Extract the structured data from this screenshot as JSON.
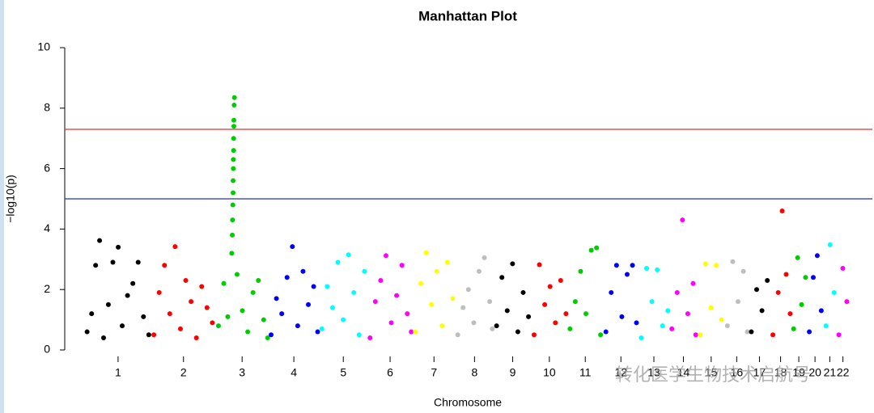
{
  "chart_data": {
    "type": "manhattan",
    "title": "Manhattan Plot",
    "xlabel": "Chromosome",
    "ylabel": "−log10(p)",
    "watermark": "转化医学生物技术启航号",
    "ylim": [
      0,
      10
    ],
    "yticks": [
      0,
      2,
      4,
      6,
      8,
      10
    ],
    "thresholds": [
      {
        "value": 7.3,
        "color": "#e03030"
      },
      {
        "value": 5,
        "color": "#2030c0"
      }
    ],
    "categories": [
      "1",
      "2",
      "3",
      "4",
      "5",
      "6",
      "7",
      "8",
      "9",
      "10",
      "11",
      "12",
      "13",
      "14",
      "15",
      "16",
      "17",
      "18",
      "19",
      "20",
      "21",
      "22"
    ],
    "series": [
      {
        "color": "#000000",
        "x": [
          8,
          25,
          40,
          55,
          70,
          88,
          105,
          125,
          140,
          160,
          180,
          200,
          220,
          240
        ],
        "values": [
          0.6,
          1.2,
          2.8,
          3.62,
          0.4,
          1.5,
          2.9,
          3.4,
          0.8,
          1.8,
          2.2,
          2.9,
          1.1,
          0.5
        ]
      },
      {
        "color": "#ff0000",
        "x": [
          10,
          30,
          50,
          70,
          90,
          110,
          130,
          150,
          170,
          190,
          210,
          230
        ],
        "values": [
          0.5,
          1.9,
          2.8,
          1.2,
          3.42,
          0.7,
          2.3,
          1.6,
          0.4,
          2.1,
          1.4,
          0.9
        ]
      },
      {
        "color": "#00cd00",
        "x": [
          10,
          30,
          45,
          60,
          62,
          63,
          64,
          65,
          65,
          66,
          66,
          67,
          67,
          68,
          68,
          69,
          70,
          80,
          100,
          120,
          140,
          160,
          180,
          195
        ],
        "values": [
          0.8,
          2.2,
          1.1,
          3.2,
          3.8,
          4.3,
          4.8,
          5.2,
          5.6,
          6.0,
          6.3,
          6.6,
          7.0,
          7.4,
          7.6,
          8.1,
          8.35,
          2.5,
          1.3,
          0.6,
          1.9,
          2.3,
          1.0,
          0.4
        ]
      },
      {
        "color": "#0000ff",
        "x": [
          10,
          30,
          50,
          70,
          90,
          110,
          130,
          150,
          170,
          185
        ],
        "values": [
          0.5,
          1.7,
          1.2,
          2.4,
          3.42,
          0.8,
          2.6,
          1.5,
          2.1,
          0.6
        ]
      },
      {
        "color": "#00ffff",
        "x": [
          10,
          30,
          50,
          70,
          90,
          110,
          130,
          150,
          170
        ],
        "values": [
          0.7,
          2.1,
          1.4,
          2.9,
          1.0,
          3.15,
          1.9,
          0.5,
          2.6
        ]
      },
      {
        "color": "#ff00ff",
        "x": [
          10,
          30,
          50,
          70,
          90,
          110,
          130,
          150,
          165
        ],
        "values": [
          0.4,
          1.6,
          2.3,
          3.12,
          0.9,
          1.8,
          2.8,
          1.2,
          0.6
        ]
      },
      {
        "color": "#ffff00",
        "x": [
          10,
          30,
          50,
          70,
          90,
          110,
          130,
          150
        ],
        "values": [
          0.6,
          2.2,
          3.22,
          1.5,
          2.6,
          0.8,
          2.9,
          1.7
        ]
      },
      {
        "color": "#bebebe",
        "x": [
          10,
          30,
          50,
          70,
          90,
          110,
          130,
          140
        ],
        "values": [
          0.5,
          1.4,
          2.0,
          0.9,
          2.6,
          3.05,
          1.6,
          0.7
        ]
      },
      {
        "color": "#000000",
        "x": [
          10,
          30,
          50,
          70,
          90,
          110,
          130
        ],
        "values": [
          0.8,
          2.4,
          1.3,
          2.85,
          0.6,
          1.9,
          1.1
        ]
      },
      {
        "color": "#ff0000",
        "x": [
          10,
          30,
          50,
          70,
          90,
          110,
          130
        ],
        "values": [
          0.5,
          2.82,
          1.5,
          2.1,
          0.9,
          2.3,
          1.2
        ]
      },
      {
        "color": "#00cd00",
        "x": [
          10,
          30,
          50,
          70,
          90,
          110,
          125
        ],
        "values": [
          0.7,
          1.6,
          2.6,
          1.2,
          3.3,
          3.38,
          0.5
        ]
      },
      {
        "color": "#0000ff",
        "x": [
          10,
          30,
          50,
          70,
          90,
          110,
          125
        ],
        "values": [
          0.6,
          1.9,
          2.8,
          1.1,
          2.5,
          2.8,
          0.9
        ]
      },
      {
        "color": "#00ffff",
        "x": [
          10,
          30,
          50,
          70,
          90,
          110
        ],
        "values": [
          0.4,
          2.7,
          1.6,
          2.65,
          0.8,
          1.3
        ]
      },
      {
        "color": "#ff00ff",
        "x": [
          10,
          30,
          50,
          70,
          90,
          100
        ],
        "values": [
          0.7,
          1.9,
          4.3,
          1.2,
          2.2,
          0.5
        ]
      },
      {
        "color": "#ffff00",
        "x": [
          10,
          30,
          50,
          70,
          90
        ],
        "values": [
          0.5,
          2.85,
          1.4,
          2.8,
          1.0
        ]
      },
      {
        "color": "#bebebe",
        "x": [
          10,
          30,
          50,
          70,
          85
        ],
        "values": [
          0.8,
          2.92,
          1.6,
          2.6,
          0.6
        ]
      },
      {
        "color": "#000000",
        "x": [
          10,
          30,
          50,
          70
        ],
        "values": [
          0.6,
          2.0,
          1.3,
          2.3
        ]
      },
      {
        "color": "#ff0000",
        "x": [
          10,
          30,
          45,
          60,
          75
        ],
        "values": [
          0.5,
          1.9,
          4.6,
          2.5,
          1.2
        ]
      },
      {
        "color": "#00cd00",
        "x": [
          10,
          25,
          40,
          55
        ],
        "values": [
          0.7,
          3.05,
          1.5,
          2.4
        ]
      },
      {
        "color": "#0000ff",
        "x": [
          10,
          25,
          40,
          55
        ],
        "values": [
          0.6,
          2.4,
          3.12,
          1.3
        ]
      },
      {
        "color": "#00ffff",
        "x": [
          10,
          25,
          40
        ],
        "values": [
          0.8,
          3.48,
          1.9
        ]
      },
      {
        "color": "#ff00ff",
        "x": [
          10,
          25,
          40
        ],
        "values": [
          0.5,
          2.7,
          1.6
        ]
      }
    ]
  }
}
